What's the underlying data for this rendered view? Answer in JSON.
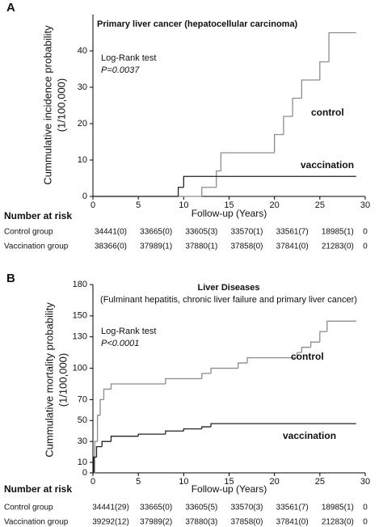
{
  "chart_data": [
    {
      "type": "step",
      "panel": "A",
      "title": "Primary liver cancer (hepatocellular carcinoma)",
      "y_label": [
        "Cummulative incidence probability",
        "(1/100,000)"
      ],
      "x_label": "Follow-up (Years)",
      "test": "Log-Rank test",
      "p_value": "P=0.0037",
      "xlim": [
        0,
        30
      ],
      "xticks": [
        0,
        5,
        10,
        15,
        20,
        25,
        30
      ],
      "ylim": [
        0,
        50
      ],
      "yticks": [
        0,
        10,
        20,
        30,
        40
      ],
      "series": [
        {
          "name": "control",
          "color": "#8c8c8c",
          "x": [
            0,
            12,
            13.6,
            14.1,
            20,
            21,
            22,
            23,
            23.5,
            25,
            26,
            29
          ],
          "values": [
            0,
            2.5,
            7,
            12,
            17,
            22,
            27,
            32,
            32,
            37,
            45,
            45
          ]
        },
        {
          "name": "vaccination",
          "color": "#222222",
          "x": [
            0,
            9.4,
            10,
            29
          ],
          "values": [
            0,
            2.5,
            5.5,
            5.5
          ]
        }
      ],
      "risk_table": {
        "title": "Number at risk",
        "rows": [
          {
            "name": "Control group",
            "values": [
              "34441(0)",
              "33665(0)",
              "33605(3)",
              "33570(1)",
              "33561(7)",
              "18985(1)",
              "0"
            ]
          },
          {
            "name": "Vaccination group",
            "values": [
              "38366(0)",
              "37989(1)",
              "37880(1)",
              "37858(0)",
              "37841(0)",
              "21283(0)",
              "0"
            ]
          }
        ]
      }
    },
    {
      "type": "step",
      "panel": "B",
      "title": "Liver Diseases",
      "subtitle": "(Fulminant hepatitis, chronic liver failure and primary liver cancer)",
      "y_label": [
        "Cummulative mortality probability",
        "(1/100,000)"
      ],
      "x_label": "Follow-up (Years)",
      "test": "Log-Rank test",
      "p_value": "P<0.0001",
      "xlim": [
        0,
        30
      ],
      "xticks": [
        0,
        5,
        10,
        15,
        20,
        25,
        30
      ],
      "ylim": [
        0,
        180
      ],
      "yticks": [
        0,
        10,
        30,
        50,
        70,
        100,
        130,
        150,
        180
      ],
      "series": [
        {
          "name": "control",
          "color": "#8c8c8c",
          "x": [
            0,
            0.2,
            0.5,
            0.8,
            1.2,
            2,
            8,
            12,
            13,
            16,
            17,
            22,
            22.5,
            23,
            24,
            25,
            25.8,
            29
          ],
          "values": [
            0,
            30,
            55,
            70,
            80,
            85,
            90,
            95,
            100,
            105,
            110,
            110,
            115,
            120,
            125,
            135,
            145,
            145
          ]
        },
        {
          "name": "vaccination",
          "color": "#222222",
          "x": [
            0,
            0.1,
            0.4,
            1,
            2,
            5,
            8,
            10,
            12,
            13,
            29
          ],
          "values": [
            0,
            15,
            25,
            30,
            35,
            37,
            40,
            42,
            44,
            47,
            47
          ]
        }
      ],
      "risk_table": {
        "title": "Number at risk",
        "rows": [
          {
            "name": "Control group",
            "values": [
              "34441(29)",
              "33665(0)",
              "33605(5)",
              "33570(3)",
              "33561(7)",
              "18985(1)",
              "0"
            ]
          },
          {
            "name": "Vaccination group",
            "values": [
              "39292(12)",
              "37989(2)",
              "37880(3)",
              "37858(0)",
              "37841(0)",
              "21283(0)",
              "0"
            ]
          }
        ]
      }
    }
  ]
}
